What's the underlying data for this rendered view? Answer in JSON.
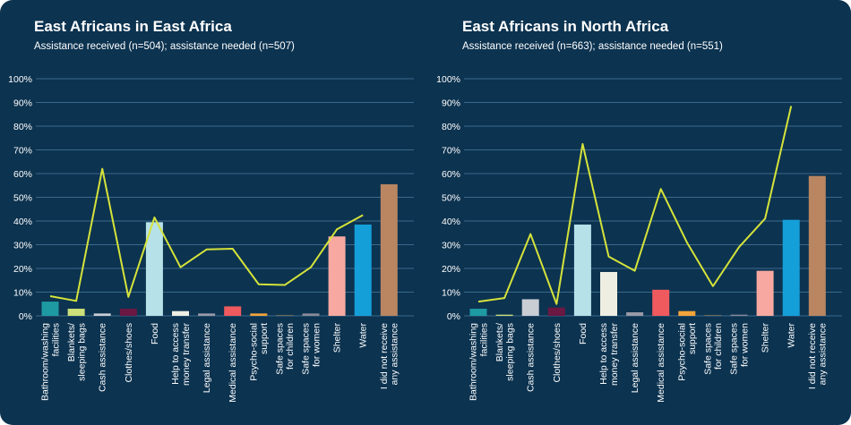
{
  "chart_data": [
    {
      "type": "bar",
      "title": "East Africans in East Africa",
      "subtitle": "Assistance received (n=504); assistance needed (n=507)",
      "ylim": [
        0,
        100
      ],
      "yticks": [
        "0%",
        "10%",
        "20%",
        "30%",
        "40%",
        "50%",
        "60%",
        "70%",
        "80%",
        "90%",
        "100%"
      ],
      "categories": [
        [
          "Bathroom/washing",
          "facilities"
        ],
        [
          "Blankets/",
          "sleeping bags"
        ],
        [
          "Cash assistance"
        ],
        [
          "Clothes/shoes"
        ],
        [
          "Food"
        ],
        [
          "Help to access",
          "money transfer"
        ],
        [
          "Legal assistance"
        ],
        [
          "Medical assistance"
        ],
        [
          "Psycho-social",
          "support"
        ],
        [
          "Safe spaces",
          "for children"
        ],
        [
          "Safe spaces",
          "for women"
        ],
        [
          "Shelter"
        ],
        [
          "Water"
        ],
        [
          "I did not receive",
          "any assistance"
        ]
      ],
      "bar_colors": [
        "#1e9aa3",
        "#cde07a",
        "#c9cdd4",
        "#6b1843",
        "#b6e1e8",
        "#eeefe2",
        "#9a9aa8",
        "#ef5a5e",
        "#f4a43a",
        "#6b6b5a",
        "#8a8a98",
        "#f7a9a1",
        "#159fd9",
        "#b98661"
      ],
      "received": [
        6,
        3,
        1,
        3,
        39.5,
        2,
        1,
        4,
        1,
        0.4,
        1,
        33.5,
        38.5,
        55.5
      ],
      "needed": [
        8.3,
        6.3,
        62,
        8,
        41.5,
        20.5,
        28,
        28.3,
        13.3,
        13,
        20.5,
        36.5,
        42.5,
        null
      ],
      "line_color": "#d5e33a"
    },
    {
      "type": "bar",
      "title": "East Africans in North Africa",
      "subtitle": "Assistance received (n=663); assistance needed (n=551)",
      "ylim": [
        0,
        100
      ],
      "yticks": [
        "0%",
        "10%",
        "20%",
        "30%",
        "40%",
        "50%",
        "60%",
        "70%",
        "80%",
        "90%",
        "100%"
      ],
      "categories": [
        [
          "Bathroom/washing",
          "facilities"
        ],
        [
          "Blankets/",
          "sleeping bags"
        ],
        [
          "Cash assistance"
        ],
        [
          "Clothes/shoes"
        ],
        [
          "Food"
        ],
        [
          "Help to access",
          "money transfer"
        ],
        [
          "Legal assistance"
        ],
        [
          "Medical assistance"
        ],
        [
          "Psycho-social",
          "support"
        ],
        [
          "Safe spaces",
          "for children"
        ],
        [
          "Safe spaces",
          "for women"
        ],
        [
          "Shelter"
        ],
        [
          "Water"
        ],
        [
          "I did not receive",
          "any assistance"
        ]
      ],
      "bar_colors": [
        "#1e9aa3",
        "#cde07a",
        "#c9cdd4",
        "#6b1843",
        "#b6e1e8",
        "#eeefe2",
        "#9a9aa8",
        "#ef5a5e",
        "#f4a43a",
        "#6b6b5a",
        "#8a8a98",
        "#f7a9a1",
        "#159fd9",
        "#b98661"
      ],
      "received": [
        3,
        0.5,
        7,
        3.5,
        38.5,
        18.5,
        1.5,
        11,
        2,
        0.4,
        0.5,
        19,
        40.5,
        59
      ],
      "needed": [
        6,
        7.5,
        34.5,
        5,
        72.5,
        25,
        19,
        53.5,
        31,
        12.5,
        29,
        41,
        88.5,
        null
      ],
      "line_color": "#d5e33a"
    }
  ]
}
